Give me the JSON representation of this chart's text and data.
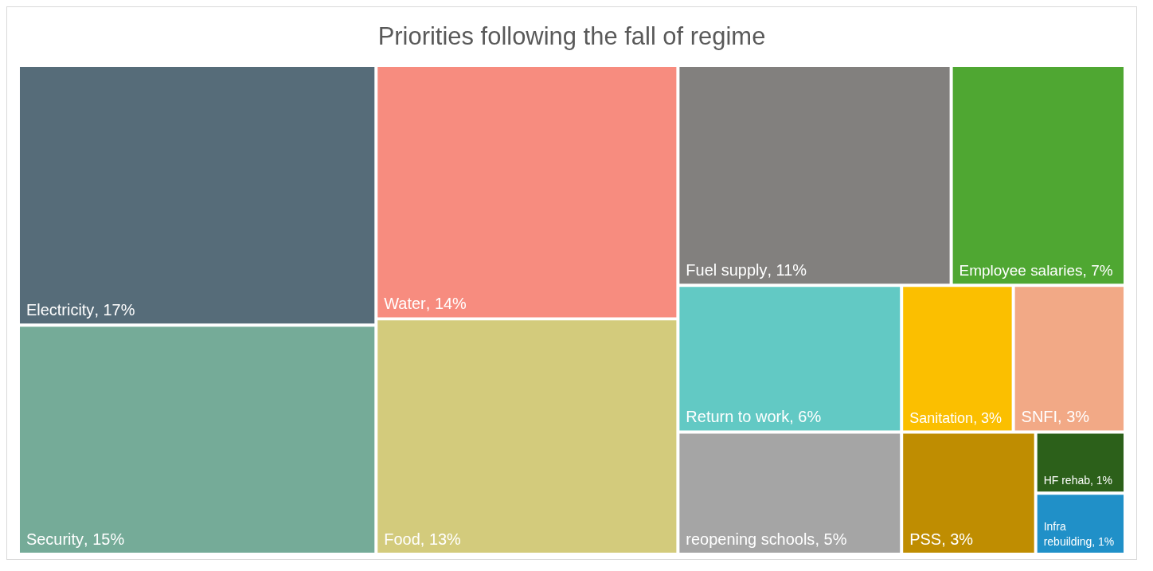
{
  "chart_data": {
    "type": "other",
    "title": "Priorities following the fall of regime",
    "categories": [
      "Electricity",
      "Security",
      "Water",
      "Food",
      "Fuel supply",
      "Employee salaries",
      "Return to work",
      "reopening schools",
      "Sanitation",
      "SNFI",
      "PSS",
      "HF rehab",
      "Infra rebuilding"
    ],
    "values": [
      17,
      15,
      14,
      13,
      11,
      7,
      6,
      5,
      3,
      3,
      3,
      1,
      1
    ],
    "value_labels": [
      ", 17%",
      ", 15%",
      ", 14%",
      ", 13%",
      ", 11%",
      ", 7%",
      ", 6%",
      ", 5%",
      ", 3%",
      ", 3%",
      ", 3%",
      ", 1%",
      ", 1%"
    ],
    "colors": [
      "#566c79",
      "#75ab98",
      "#f78c7f",
      "#d3cb7c",
      "#82807e",
      "#4fa732",
      "#62c9c4",
      "#a5a5a5",
      "#fbbf00",
      "#f2a986",
      "#bf8d01",
      "#2c601a",
      "#2090c8"
    ]
  }
}
